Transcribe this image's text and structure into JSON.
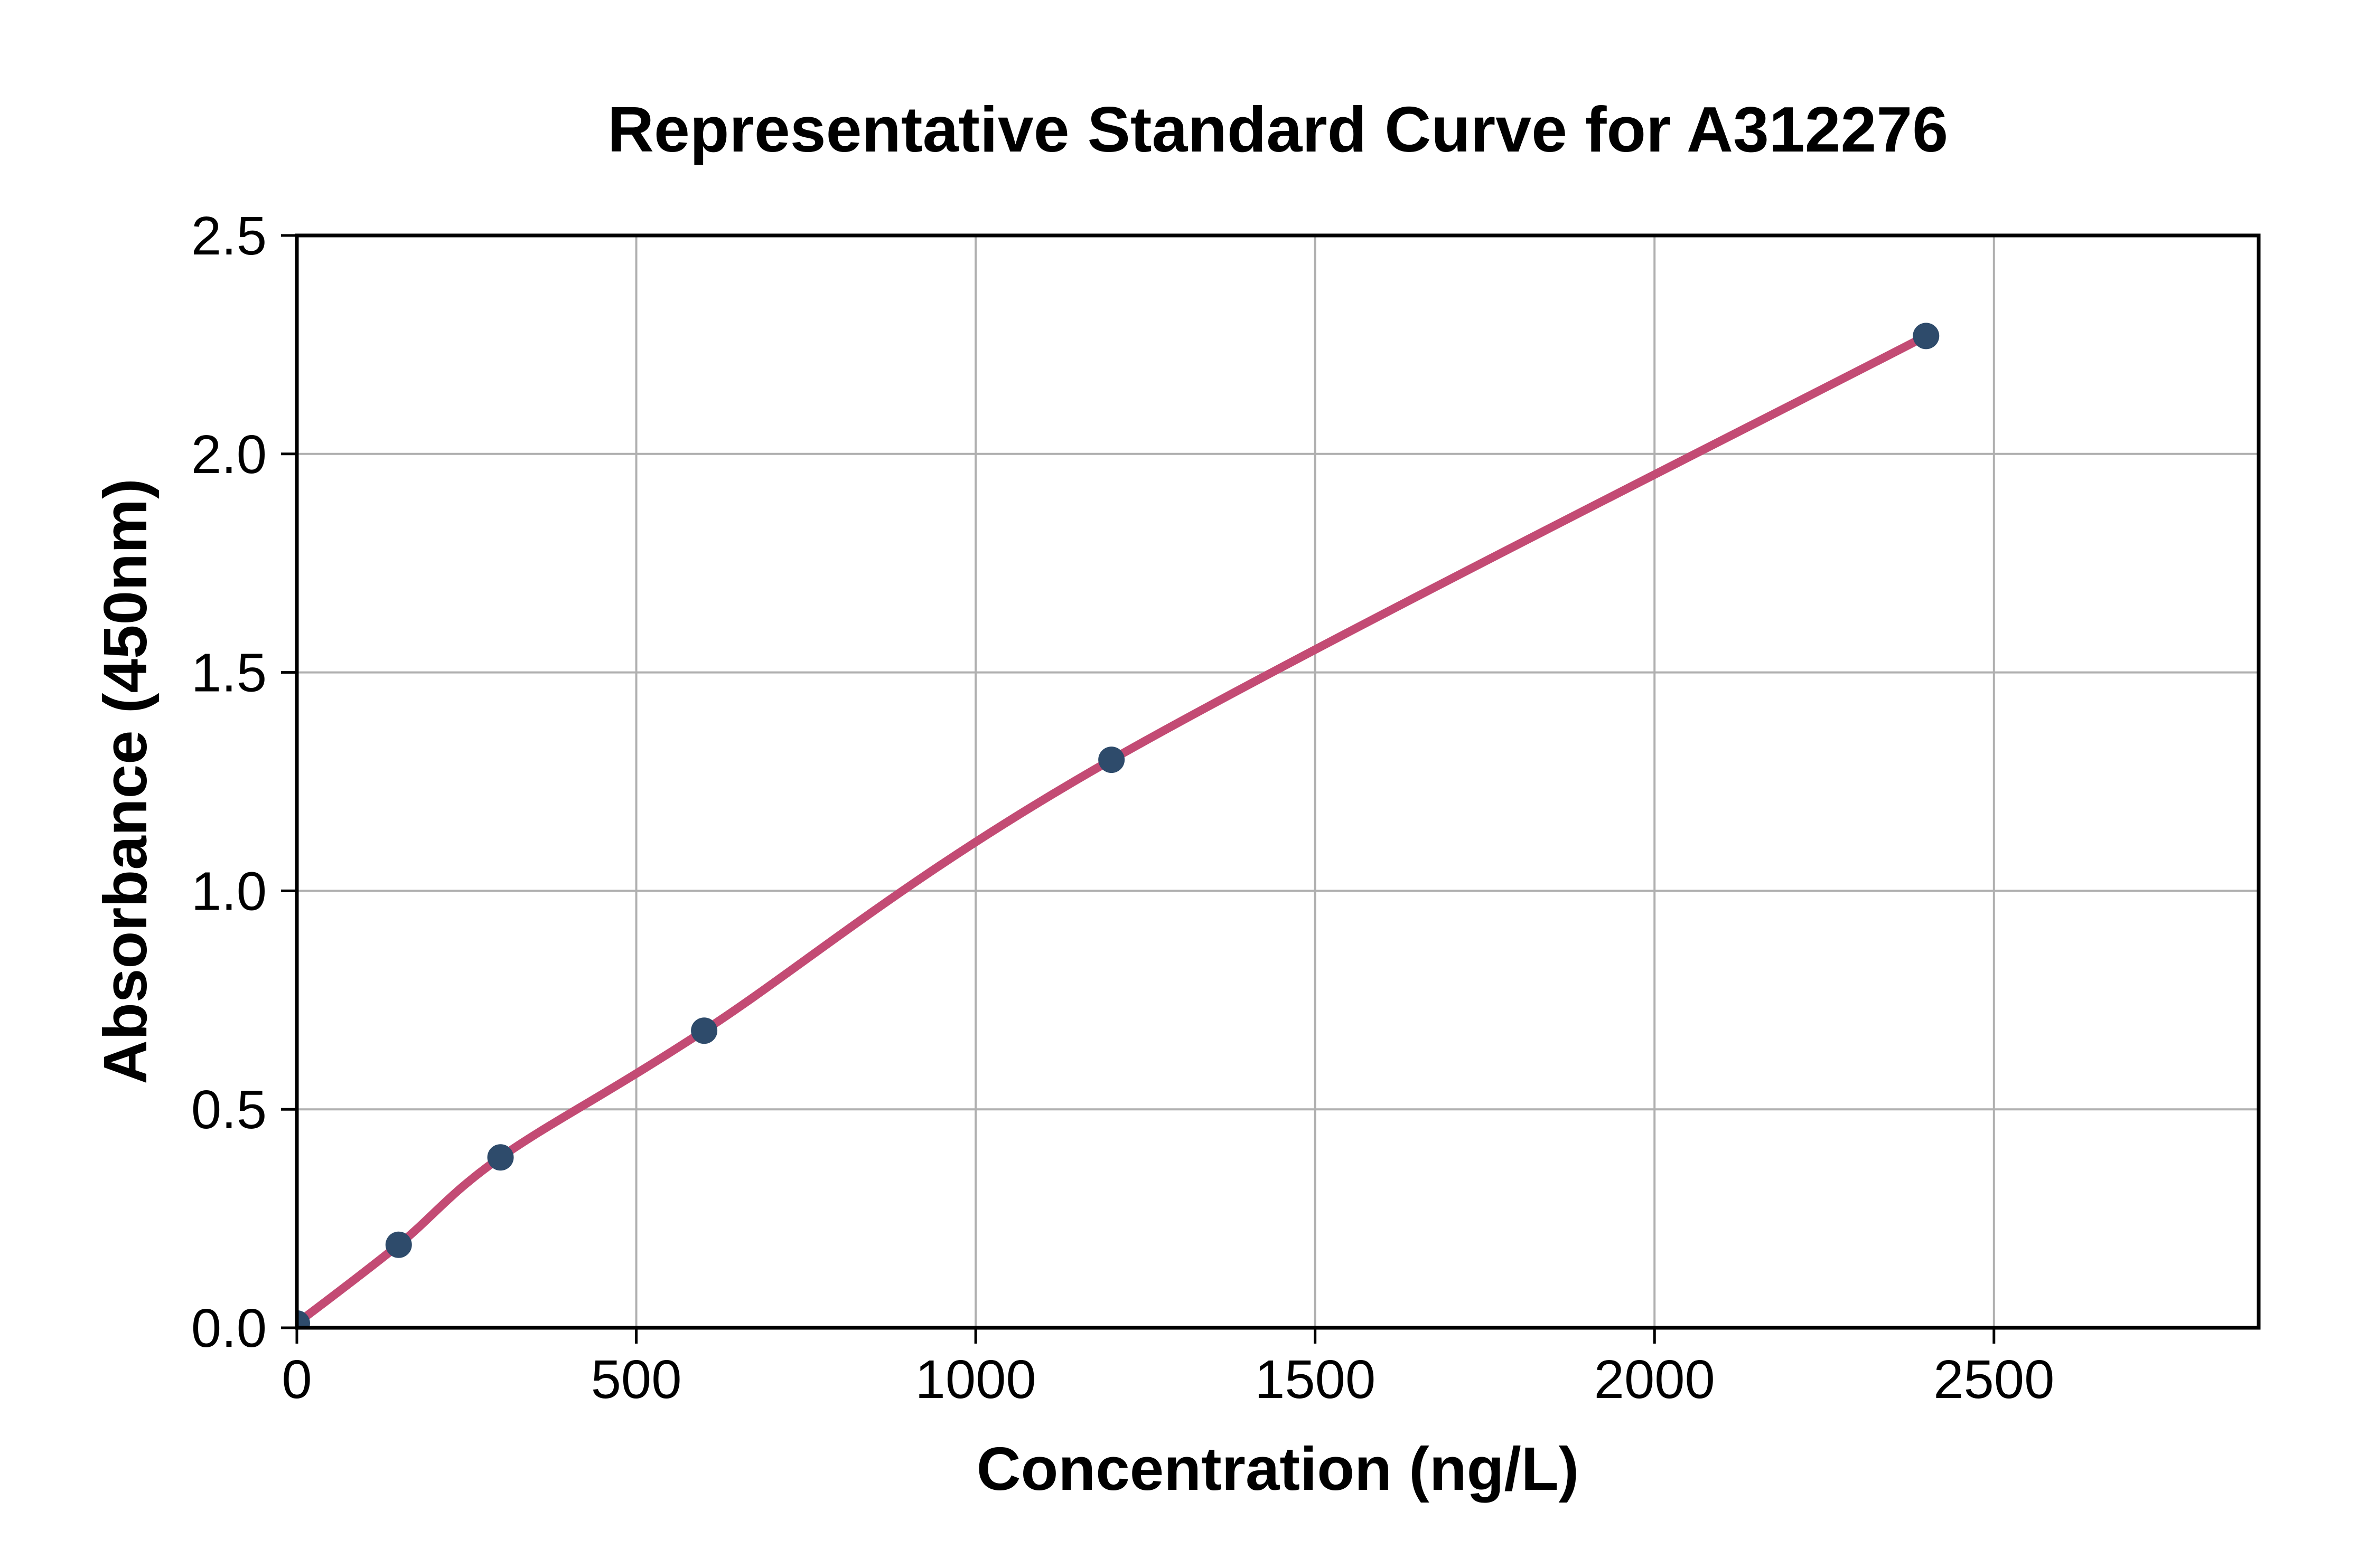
{
  "page": {
    "background": "#ffffff"
  },
  "chart_data": {
    "type": "scatter",
    "subtype": "standard-curve-with-fitted-line",
    "title": "Representative Standard Curve for A312276",
    "xlabel": "Concentration (ng/L)",
    "ylabel": "Absorbance (450nm)",
    "series": [
      {
        "name": "standard-points",
        "x": [
          0,
          150,
          300,
          600,
          1200,
          2400
        ],
        "y": [
          0.01,
          0.19,
          0.39,
          0.68,
          1.3,
          2.27
        ]
      }
    ],
    "xlim": [
      0,
      2890
    ],
    "ylim": [
      0,
      2.5
    ],
    "xticks": {
      "values": [
        0,
        500,
        1000,
        1500,
        2000,
        2500
      ],
      "labels": [
        "0",
        "500",
        "1000",
        "1500",
        "2000",
        "2500"
      ]
    },
    "yticks": {
      "values": [
        0,
        0.5,
        1.0,
        1.5,
        2.0,
        2.5
      ],
      "labels": [
        "0.0",
        "0.5",
        "1.0",
        "1.5",
        "2.0",
        "2.5"
      ]
    },
    "grid": true,
    "legend": "none",
    "colors": {
      "curve": "#c34b74",
      "marker": "#2e4b6b",
      "grid": "#b0b0b0",
      "spine": "#000000",
      "text": "#000000"
    }
  }
}
